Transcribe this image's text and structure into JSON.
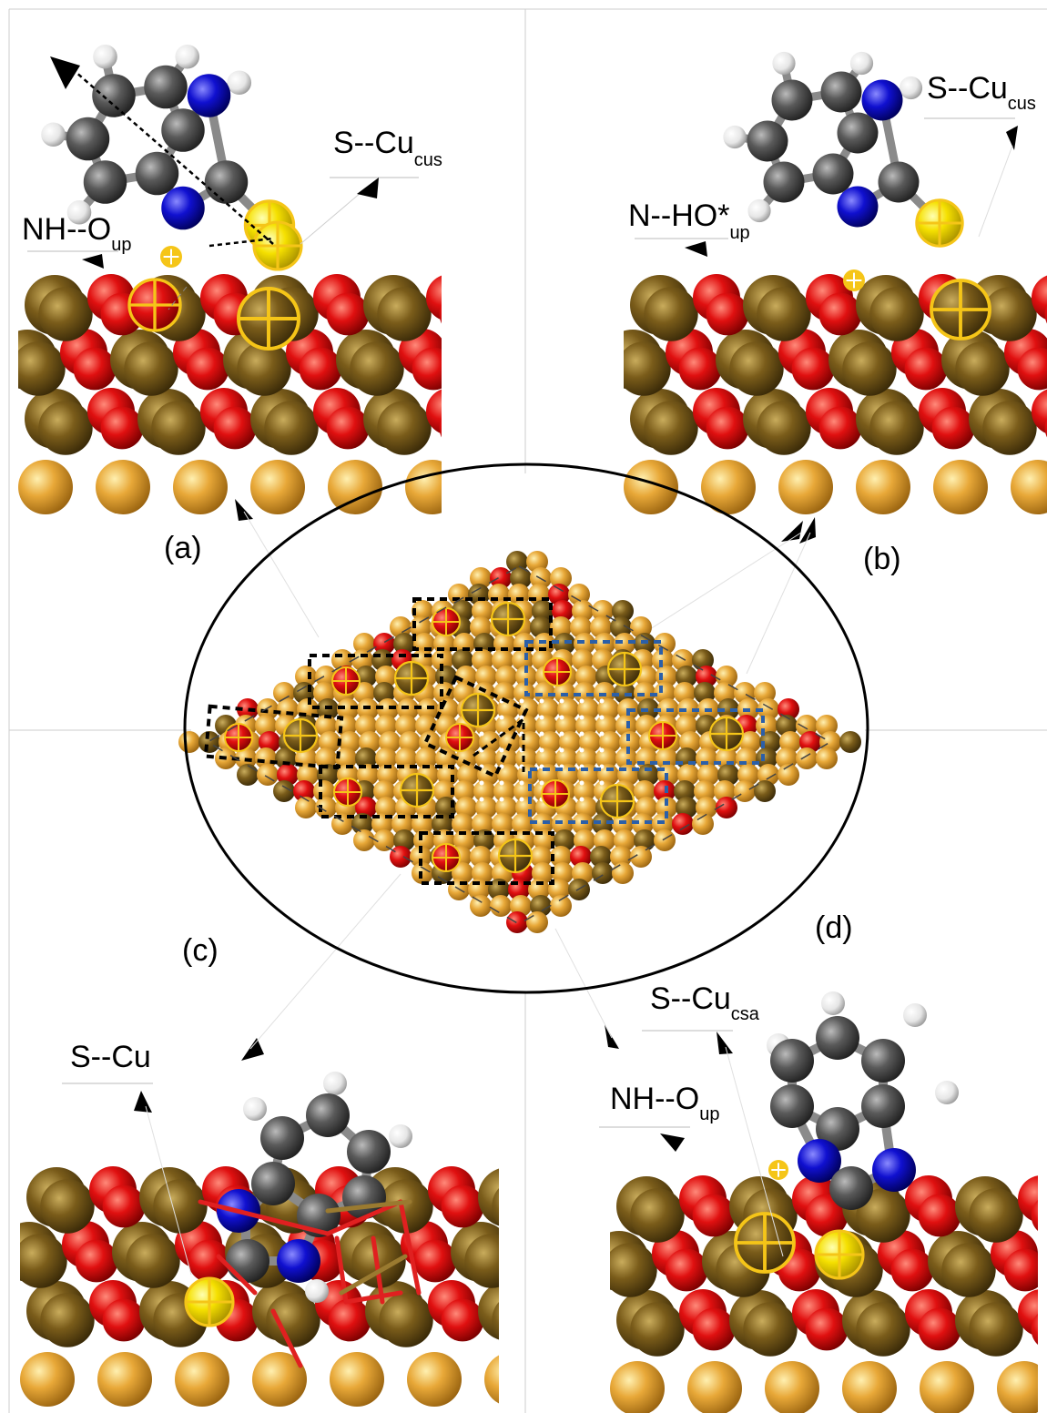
{
  "panels": {
    "a": {
      "letter": "(a)",
      "bond_label_1": {
        "main": "NH--O",
        "sub": "up"
      },
      "bond_label_2": {
        "main": "S--Cu",
        "sub": "cus"
      }
    },
    "b": {
      "letter": "(b)",
      "bond_label_1": {
        "main": "N--HO*",
        "sub": "up"
      },
      "bond_label_2": {
        "main": "S--Cu",
        "sub": "cus"
      }
    },
    "c": {
      "letter": "(c)",
      "bond_label_1": {
        "main": "S--Cu",
        "sub": ""
      }
    },
    "d": {
      "letter": "(d)",
      "bond_label_1": {
        "main": "S--Cu",
        "sub": "csa"
      },
      "bond_label_2": {
        "main": "NH--O",
        "sub": "up"
      }
    }
  },
  "colors": {
    "oxygen": "#e01010",
    "copper_oxide": "#7a5c1a",
    "copper": "#e8a838",
    "carbon": "#555555",
    "nitrogen": "#1010d0",
    "sulfur": "#f5e000",
    "hydrogen": "#e6e6e6",
    "black_box": "#000000",
    "blue_box": "#2b5fa8"
  }
}
